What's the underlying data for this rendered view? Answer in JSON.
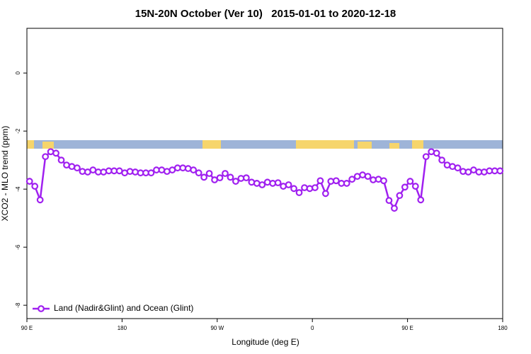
{
  "chart_data": {
    "type": "line",
    "title": "15N-20N October (Ver 10)   2015-01-01 to 2020-12-18",
    "x_label": "Longitude (deg E)",
    "y_label": "XCO2 - MLO trend (ppm)",
    "xlim": [
      90,
      540
    ],
    "xticks": [
      {
        "value": 90,
        "label": "90 E"
      },
      180,
      {
        "value": 270,
        "label": "90 W"
      },
      {
        "value": 360,
        "label": "0"
      },
      {
        "value": 450,
        "label": "90 E"
      },
      {
        "value": 540,
        "label": "180"
      }
    ],
    "ylim": [
      -8.46,
      1.54
    ],
    "yticks": [
      0,
      -2,
      -4,
      -6,
      -8
    ],
    "legend": "bottom-left",
    "x": [
      92.5,
      97.5,
      102.5,
      107.5,
      112.5,
      117.5,
      122.5,
      127.5,
      132.5,
      137.5,
      142.5,
      147.5,
      152.5,
      157.5,
      162.5,
      167.5,
      172.5,
      177.5,
      182.5,
      187.5,
      192.5,
      197.5,
      202.5,
      207.5,
      212.5,
      217.5,
      222.5,
      227.5,
      232.5,
      237.5,
      242.5,
      247.5,
      252.5,
      257.5,
      262.5,
      267.5,
      272.5,
      277.5,
      282.5,
      287.5,
      292.5,
      297.5,
      302.5,
      307.5,
      312.5,
      317.5,
      322.5,
      327.5,
      332.5,
      337.5,
      342.5,
      347.5,
      352.5,
      357.5,
      362.5,
      367.5,
      372.5,
      377.5,
      382.5,
      387.5,
      392.5,
      397.5,
      402.5,
      407.5,
      412.5,
      417.5,
      422.5,
      427.5,
      432.5,
      437.5,
      442.5,
      447.5,
      452.5,
      457.5,
      462.5,
      467.5,
      472.5,
      477.5,
      482.5,
      487.5,
      492.5,
      497.5,
      502.5,
      507.5,
      512.5,
      517.5,
      522.5,
      527.5,
      532.5,
      537.5
    ],
    "series": [
      {
        "name": "Land (Nadir&Glint) and Ocean (Glint)",
        "color": "#a020f0",
        "values": [
          -3.73,
          -3.9,
          -4.37,
          -2.88,
          -2.71,
          -2.76,
          -3.0,
          -3.17,
          -3.22,
          -3.27,
          -3.39,
          -3.41,
          -3.34,
          -3.41,
          -3.41,
          -3.37,
          -3.37,
          -3.37,
          -3.44,
          -3.39,
          -3.41,
          -3.44,
          -3.44,
          -3.44,
          -3.34,
          -3.34,
          -3.39,
          -3.34,
          -3.27,
          -3.27,
          -3.29,
          -3.34,
          -3.44,
          -3.59,
          -3.46,
          -3.68,
          -3.61,
          -3.46,
          -3.59,
          -3.73,
          -3.63,
          -3.61,
          -3.76,
          -3.8,
          -3.85,
          -3.76,
          -3.8,
          -3.78,
          -3.9,
          -3.85,
          -3.98,
          -4.12,
          -3.95,
          -3.98,
          -3.95,
          -3.71,
          -4.15,
          -3.73,
          -3.71,
          -3.8,
          -3.8,
          -3.66,
          -3.56,
          -3.51,
          -3.56,
          -3.68,
          -3.66,
          -3.71,
          -4.39,
          -4.66,
          -4.22,
          -3.93,
          -3.73,
          -3.9,
          -4.37,
          -2.88,
          -2.71,
          -2.76,
          -3.0,
          -3.17,
          -3.22,
          -3.27,
          -3.39,
          -3.41,
          -3.34,
          -3.41,
          -3.41,
          -3.37,
          -3.37,
          -3.37
        ]
      }
    ]
  }
}
